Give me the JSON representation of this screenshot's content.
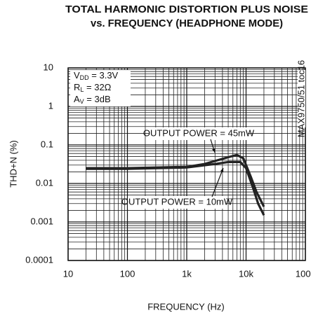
{
  "chart_data": {
    "type": "line",
    "title": [
      "TOTAL HARMONIC DISTORTION PLUS NOISE",
      "vs. FREQUENCY (HEADPHONE MODE)"
    ],
    "x_label": "FREQUENCY (Hz)",
    "y_label": "THD+N (%)",
    "xscale": "log",
    "yscale": "log",
    "grid": "minor",
    "xlim": [
      10,
      100000
    ],
    "ylim": [
      0.0001,
      10
    ],
    "xticks": [
      10,
      100,
      {
        "value": 1000,
        "label": "1k"
      },
      {
        "value": 10000,
        "label": "10k"
      },
      {
        "value": 100000,
        "label": "100k"
      }
    ],
    "yticks": [
      0.0001,
      0.001,
      0.01,
      0.1,
      1,
      10
    ],
    "conditions": [
      [
        "V",
        "DD",
        " = 3.3V"
      ],
      [
        "R",
        "L",
        " = 32Ω"
      ],
      [
        "A",
        "V",
        " = 3dB"
      ]
    ],
    "side_note": "MAX9750/51 toc16",
    "series": [
      {
        "name": "OUTPUT POWER = 45mW",
        "color": "#222",
        "x": [
          20,
          100,
          1000,
          2000,
          5000,
          7000,
          9000,
          12000,
          15000,
          20000
        ],
        "values": [
          0.025,
          0.025,
          0.027,
          0.032,
          0.048,
          0.055,
          0.045,
          0.015,
          0.006,
          0.0025
        ]
      },
      {
        "name": "OUTPUT POWER = 10mW",
        "color": "#222",
        "x": [
          20,
          100,
          1000,
          3000,
          5000,
          8000,
          10000,
          13000,
          16000,
          20000
        ],
        "values": [
          0.024,
          0.024,
          0.026,
          0.032,
          0.036,
          0.036,
          0.025,
          0.008,
          0.003,
          0.0015
        ]
      }
    ]
  }
}
